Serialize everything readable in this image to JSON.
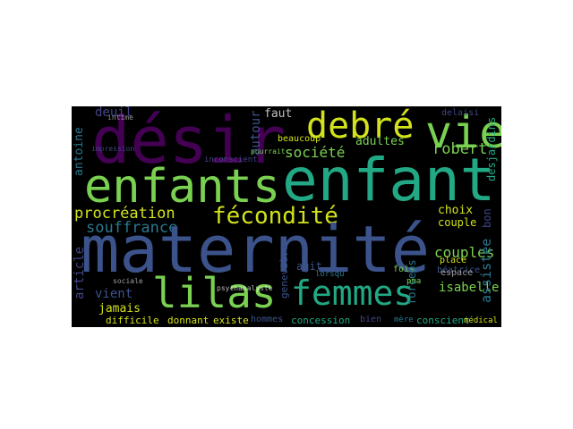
{
  "palette": {
    "yellow": "#d2e21b",
    "lime": "#7ad151",
    "green": "#22a884",
    "teal": "#2a788e",
    "slate": "#414487",
    "navy": "#3b528b",
    "purple": "#440154",
    "lavender": "#482878"
  },
  "words": {
    "maternite": "maternité",
    "enfant": "enfant",
    "enfants": "enfants",
    "desir": "désir",
    "vie": "vie",
    "debre": "debré",
    "lilas": "lilas",
    "femmes": "femmes",
    "fecondite": "fécondité",
    "procreation": "procréation",
    "souffrance": "souffrance",
    "societe": "société",
    "robert": "robert",
    "deuil": "deuil",
    "faut": "faut",
    "adultes": "adultes",
    "beaucoup": "beaucoup",
    "autour": "autour",
    "antoine": "antoine",
    "choix": "choix",
    "couple": "couple",
    "couples": "couples",
    "assistee": "assistée",
    "isabelle": "isabelle",
    "beatrice": "béatrice",
    "espace": "espace",
    "forceps": "forceps",
    "fois": "fois",
    "place": "place",
    "agit": "agit",
    "vient": "vient",
    "article": "article",
    "jamais": "jamais",
    "difficile": "difficile",
    "donnant": "donnant",
    "existe": "existe",
    "hommes": "hommes",
    "concession": "concession",
    "bien": "bien",
    "mere": "mère",
    "conscient": "conscient",
    "medical": "médical",
    "desjardins": "desjardins",
    "bon": "bon",
    "genevieve": "geneviève",
    "lorsqu": "lorsqu",
    "pma": "pma",
    "delaisi": "delaisi",
    "inconscient": "inconscient",
    "intime": "intime",
    "pourrait": "pourrait",
    "psychanalyste": "psychanalyste",
    "sociale": "sociale",
    "impression": "impression"
  }
}
